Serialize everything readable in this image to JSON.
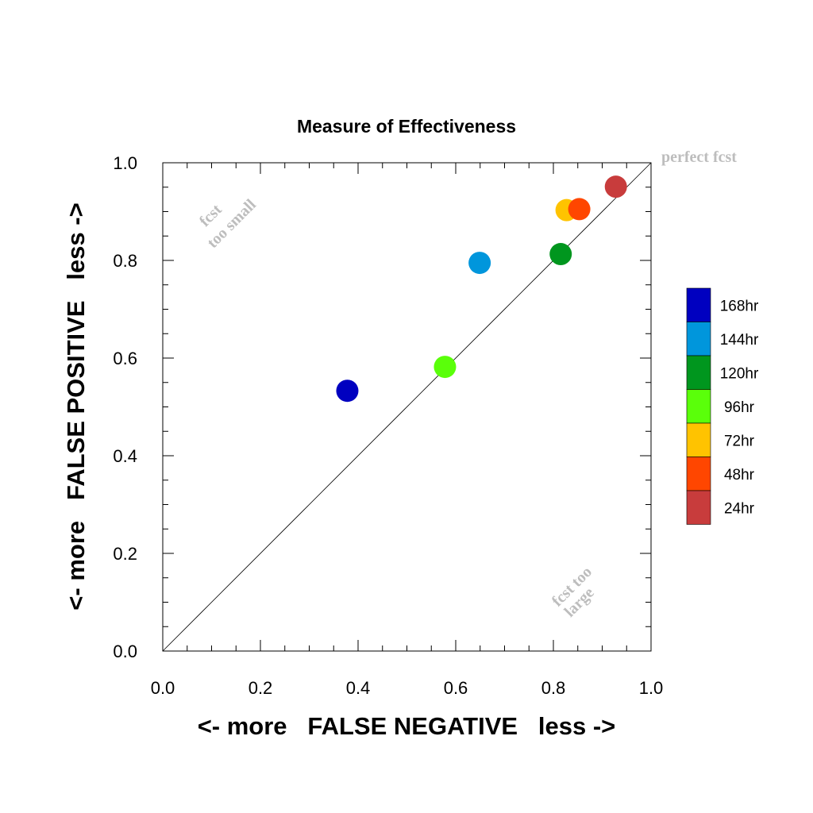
{
  "chart_data": {
    "type": "scatter",
    "title": "Measure of Effectiveness",
    "xlabel": "<- more   FALSE NEGATIVE   less ->",
    "ylabel": "<- more   FALSE POSITIVE   less ->",
    "xlim": [
      0,
      1
    ],
    "ylim": [
      0,
      1
    ],
    "xticks": [
      "0.0",
      "0.2",
      "0.4",
      "0.6",
      "0.8",
      "1.0"
    ],
    "yticks": [
      "0.0",
      "0.2",
      "0.4",
      "0.6",
      "0.8",
      "1.0"
    ],
    "grid": false,
    "diagonal_reference_line": true,
    "legend_placement": "right",
    "series": [
      {
        "name": "168hr",
        "color": "#0000c0",
        "x": 0.378,
        "y": 0.533
      },
      {
        "name": "144hr",
        "color": "#0096dc",
        "x": 0.649,
        "y": 0.795
      },
      {
        "name": "120hr",
        "color": "#00961e",
        "x": 0.815,
        "y": 0.813
      },
      {
        "name": "96hr",
        "color": "#5aff0a",
        "x": 0.578,
        "y": 0.582
      },
      {
        "name": "72hr",
        "color": "#ffc300",
        "x": 0.827,
        "y": 0.903
      },
      {
        "name": "48hr",
        "color": "#ff4600",
        "x": 0.853,
        "y": 0.905
      },
      {
        "name": "24hr",
        "color": "#c83c3c",
        "x": 0.928,
        "y": 0.951
      }
    ],
    "legend_order": [
      "168hr",
      "144hr",
      "120hr",
      "96hr",
      "72hr",
      "48hr",
      "24hr"
    ],
    "annotations": {
      "top_left_line1": "fcst",
      "top_left_line2": "too small",
      "bottom_right_line1": "fcst too",
      "bottom_right_line2": "large",
      "corner": "perfect fcst"
    }
  }
}
